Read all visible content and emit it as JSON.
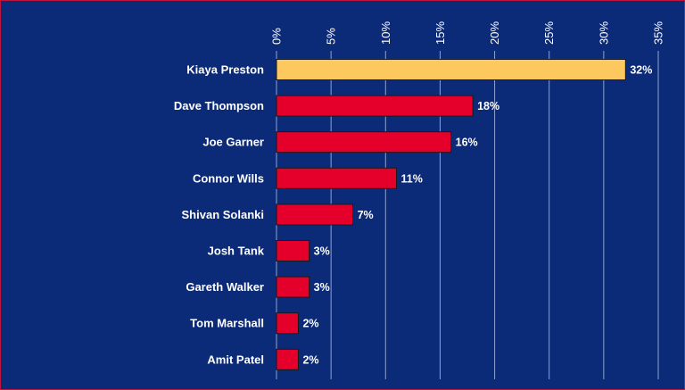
{
  "chart_data": {
    "type": "bar",
    "orientation": "horizontal",
    "categories": [
      "Kiaya Preston",
      "Dave Thompson",
      "Joe Garner",
      "Connor Wills",
      "Shivan Solanki",
      "Josh Tank",
      "Gareth Walker",
      "Tom Marshall",
      "Amit Patel"
    ],
    "values": [
      32,
      18,
      16,
      11,
      7,
      3,
      3,
      2,
      2
    ],
    "value_labels": [
      "32%",
      "18%",
      "16%",
      "11%",
      "7%",
      "3%",
      "3%",
      "2%",
      "2%"
    ],
    "title": "",
    "xlabel": "",
    "ylabel": "",
    "xlim": [
      0,
      35
    ],
    "x_ticks": [
      0,
      5,
      10,
      15,
      20,
      25,
      30,
      35
    ],
    "x_tick_labels": [
      "0%",
      "5%",
      "10%",
      "15%",
      "20%",
      "25%",
      "30%",
      "35%"
    ],
    "x_axis_position": "top",
    "grid": true,
    "legend": "none",
    "colors": {
      "background": "#0b2a78",
      "border": "#c0143c",
      "bar": "#e4002b",
      "highlight_bar": "#fdc95e",
      "bar_outline": "#1a1a1a",
      "gridline": "#8fa3cf",
      "text": "#ffffff"
    },
    "highlight_index": 0
  }
}
